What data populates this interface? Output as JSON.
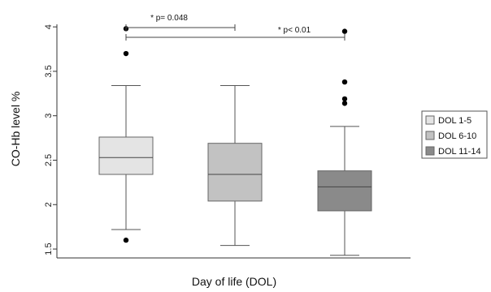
{
  "chart_data": {
    "type": "box",
    "xlabel": "Day of life (DOL)",
    "ylabel": "CO-Hb level %",
    "ylim": [
      1.4,
      4.12
    ],
    "yticks": [
      1.5,
      2,
      2.5,
      3,
      3.5,
      4
    ],
    "ytick_labels": [
      "1.5",
      "2",
      "2.5",
      "3",
      "3.5",
      "4"
    ],
    "grid": false,
    "legend_position": "right",
    "series": [
      {
        "name": "DOL 1-5",
        "color": "#e4e4e4",
        "whisker_low": 1.72,
        "q1": 2.34,
        "median": 2.53,
        "q3": 2.76,
        "whisker_high": 3.34,
        "outliers": [
          1.6,
          3.7,
          3.98
        ]
      },
      {
        "name": "DOL 6-10",
        "color": "#c2c2c2",
        "whisker_low": 1.54,
        "q1": 2.04,
        "median": 2.34,
        "q3": 2.69,
        "whisker_high": 3.34,
        "outliers": []
      },
      {
        "name": "DOL 11-14",
        "color": "#8a8a8a",
        "whisker_low": 1.43,
        "q1": 1.93,
        "median": 2.2,
        "q3": 2.38,
        "whisker_high": 2.88,
        "outliers": [
          3.14,
          3.19,
          3.38,
          3.95
        ]
      }
    ],
    "annotations": [
      {
        "text": "* p= 0.048",
        "from": 0,
        "to": 1
      },
      {
        "text": "* p< 0.01",
        "from": 0,
        "to": 2
      }
    ]
  }
}
